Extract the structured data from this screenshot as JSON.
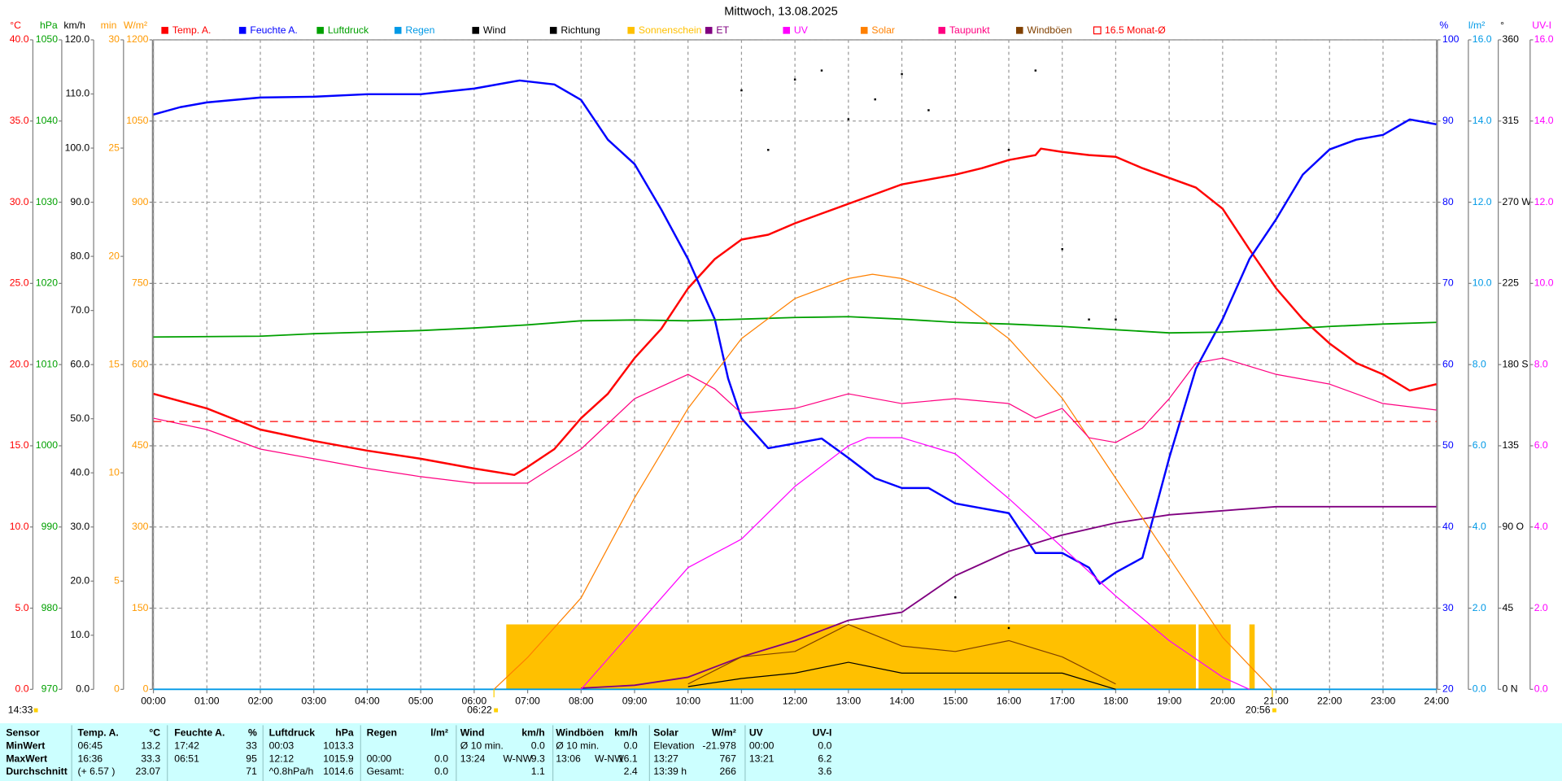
{
  "chart_data": {
    "type": "line",
    "title": "Mittwoch, 13.08.2025",
    "xlim": [
      0,
      24
    ],
    "xticks": [
      {
        "value": 0,
        "label": "00:00"
      },
      {
        "value": 1,
        "label": "01:00"
      },
      {
        "value": 2,
        "label": "02:00"
      },
      {
        "value": 3,
        "label": "03:00"
      },
      {
        "value": 4,
        "label": "04:00"
      },
      {
        "value": 5,
        "label": "05:00"
      },
      {
        "value": 6,
        "label": "06:00"
      },
      {
        "value": 7,
        "label": "07:00"
      },
      {
        "value": 8,
        "label": "08:00"
      },
      {
        "value": 9,
        "label": "09:00"
      },
      {
        "value": 10,
        "label": "10:00"
      },
      {
        "value": 11,
        "label": "11:00"
      },
      {
        "value": 12,
        "label": "12:00"
      },
      {
        "value": 13,
        "label": "13:00"
      },
      {
        "value": 14,
        "label": "14:00"
      },
      {
        "value": 15,
        "label": "15:00"
      },
      {
        "value": 16,
        "label": "16:00"
      },
      {
        "value": 17,
        "label": "17:00"
      },
      {
        "value": 18,
        "label": "18:00"
      },
      {
        "value": 19,
        "label": "19:00"
      },
      {
        "value": 20,
        "label": "20:00"
      },
      {
        "value": 21,
        "label": "21:00"
      },
      {
        "value": 22,
        "label": "22:00"
      },
      {
        "value": 23,
        "label": "23:00"
      },
      {
        "value": 24,
        "label": "24:00"
      }
    ],
    "axes": [
      {
        "id": "temp",
        "side": "left",
        "label": "°C",
        "color": "#ff0000",
        "ylim": [
          0,
          40
        ],
        "yticks": [
          {
            "value": 0,
            "label": "0.0"
          },
          {
            "value": 5,
            "label": "5.0"
          },
          {
            "value": 10,
            "label": "10.0"
          },
          {
            "value": 15,
            "label": "15.0"
          },
          {
            "value": 20,
            "label": "20.0"
          },
          {
            "value": 25,
            "label": "25.0"
          },
          {
            "value": 30,
            "label": "30.0"
          },
          {
            "value": 35,
            "label": "35.0"
          },
          {
            "value": 40,
            "label": "40.0"
          }
        ]
      },
      {
        "id": "hpa",
        "side": "left",
        "label": "hPa",
        "color": "#00a000",
        "ylim": [
          970,
          1050
        ],
        "yticks": [
          970,
          980,
          990,
          1000,
          1010,
          1020,
          1030,
          1040,
          1050
        ]
      },
      {
        "id": "kmh",
        "side": "left",
        "label": "km/h",
        "color": "#000000",
        "ylim": [
          0,
          120
        ],
        "yticks": [
          {
            "value": 0,
            "label": "0.0"
          },
          {
            "value": 10,
            "label": "10.0"
          },
          {
            "value": 20,
            "label": "20.0"
          },
          {
            "value": 30,
            "label": "30.0"
          },
          {
            "value": 40,
            "label": "40.0"
          },
          {
            "value": 50,
            "label": "50.0"
          },
          {
            "value": 60,
            "label": "60.0"
          },
          {
            "value": 70,
            "label": "70.0"
          },
          {
            "value": 80,
            "label": "80.0"
          },
          {
            "value": 90,
            "label": "90.0"
          },
          {
            "value": 100,
            "label": "100.0"
          },
          {
            "value": 110,
            "label": "110.0"
          },
          {
            "value": 120,
            "label": "120.0"
          }
        ]
      },
      {
        "id": "min",
        "side": "left",
        "label": "min",
        "color": "#ff9900",
        "ylim": [
          0,
          30
        ],
        "yticks": [
          0,
          5,
          10,
          15,
          20,
          25,
          30
        ]
      },
      {
        "id": "wm2",
        "side": "left",
        "label": "W/m²",
        "color": "#ff9900",
        "ylim": [
          0,
          1200
        ],
        "yticks": [
          0,
          150,
          300,
          450,
          600,
          750,
          900,
          1050,
          1200
        ]
      },
      {
        "id": "pct",
        "side": "right",
        "label": "%",
        "color": "#0000ff",
        "grid": true,
        "ylim": [
          20,
          100
        ],
        "yticks": [
          20,
          30,
          40,
          50,
          60,
          70,
          80,
          90,
          100
        ]
      },
      {
        "id": "lm2",
        "side": "right",
        "label": "l/m²",
        "color": "#0099e6",
        "ylim": [
          0,
          16
        ],
        "yticks": [
          {
            "value": 0,
            "label": "0.0"
          },
          {
            "value": 2,
            "label": "2.0"
          },
          {
            "value": 4,
            "label": "4.0"
          },
          {
            "value": 6,
            "label": "6.0"
          },
          {
            "value": 8,
            "label": "8.0"
          },
          {
            "value": 10,
            "label": "10.0"
          },
          {
            "value": 12,
            "label": "12.0"
          },
          {
            "value": 14,
            "label": "14.0"
          },
          {
            "value": 16,
            "label": "16.0"
          }
        ]
      },
      {
        "id": "deg",
        "side": "right",
        "label": "°",
        "color": "#000000",
        "ylim": [
          0,
          360
        ],
        "yticks": [
          {
            "value": 0,
            "label": "0 N"
          },
          45,
          {
            "value": 90,
            "label": "90 O"
          },
          135,
          {
            "value": 180,
            "label": "180 S"
          },
          225,
          {
            "value": 270,
            "label": "270 W"
          },
          315,
          360
        ]
      },
      {
        "id": "uvi",
        "side": "right",
        "label": "UV-I",
        "color": "#ff00ff",
        "ylim": [
          0,
          16
        ],
        "yticks": [
          {
            "value": 0,
            "label": "0.0"
          },
          {
            "value": 2,
            "label": "2.0"
          },
          {
            "value": 4,
            "label": "4.0"
          },
          {
            "value": 6,
            "label": "6.0"
          },
          {
            "value": 8,
            "label": "8.0"
          },
          {
            "value": 10,
            "label": "10.0"
          },
          {
            "value": 12,
            "label": "12.0"
          },
          {
            "value": 14,
            "label": "14.0"
          },
          {
            "value": 16,
            "label": "16.0"
          }
        ]
      }
    ],
    "series": [
      {
        "name": "Temp. A.",
        "color": "#ff0000",
        "axis": "temp",
        "style": "line",
        "width": 2,
        "x": [
          0,
          1,
          2,
          3,
          4,
          5,
          6,
          6.75,
          7,
          7.5,
          8,
          8.5,
          9,
          9.5,
          10,
          10.5,
          11,
          11.5,
          12,
          12.5,
          13,
          13.5,
          14,
          14.5,
          15,
          15.5,
          16,
          16.5,
          16.6,
          17,
          17.5,
          18,
          18.5,
          19,
          19.5,
          20,
          20.5,
          21,
          21.5,
          22,
          22.5,
          23,
          23.5,
          24
        ],
        "values": [
          18.2,
          17.3,
          16.0,
          15.3,
          14.7,
          14.2,
          13.6,
          13.2,
          13.7,
          14.8,
          16.7,
          18.2,
          20.4,
          22.2,
          24.7,
          26.5,
          27.7,
          28.0,
          28.7,
          29.3,
          29.9,
          30.5,
          31.1,
          31.4,
          31.7,
          32.1,
          32.6,
          32.9,
          33.3,
          33.1,
          32.9,
          32.8,
          32.1,
          31.5,
          30.9,
          29.6,
          27.1,
          24.7,
          22.8,
          21.3,
          20.1,
          19.4,
          18.4,
          18.8
        ]
      },
      {
        "name": "Feuchte A.",
        "color": "#0000ff",
        "axis": "pct",
        "style": "line",
        "width": 2,
        "x": [
          0,
          0.5,
          1,
          2,
          3,
          4,
          5,
          6,
          6.85,
          7.5,
          8,
          8.5,
          9,
          9.5,
          10,
          10.5,
          10.75,
          11,
          11.5,
          12,
          12.5,
          13,
          13.5,
          14,
          14.5,
          15,
          15.5,
          16,
          16.5,
          17,
          17.5,
          17.7,
          18,
          18.5,
          19,
          19.5,
          20,
          20.5,
          21,
          21.5,
          22,
          22.5,
          23,
          23.5,
          24
        ],
        "values": [
          90.8,
          91.7,
          92.3,
          92.9,
          93,
          93.3,
          93.3,
          94,
          95,
          94.5,
          92.6,
          87.7,
          84.7,
          79.1,
          73,
          65.6,
          58.3,
          53.4,
          49.7,
          50.3,
          50.9,
          48.5,
          46,
          44.8,
          44.8,
          42.9,
          42.3,
          41.7,
          36.8,
          36.8,
          35,
          33,
          34.4,
          36.2,
          48.5,
          59.5,
          65.6,
          73,
          77.9,
          83.4,
          86.5,
          87.7,
          88.3,
          90.2,
          89.6
        ]
      },
      {
        "name": "Luftdruck",
        "color": "#00a000",
        "axis": "hpa",
        "style": "line",
        "width": 1.5,
        "x": [
          0,
          2,
          3,
          4,
          5,
          6,
          7,
          8,
          9,
          10,
          11,
          12,
          13,
          14,
          15,
          16,
          17,
          18,
          19,
          20,
          21,
          22,
          23,
          24
        ],
        "values": [
          1013.4,
          1013.5,
          1013.8,
          1014.0,
          1014.2,
          1014.5,
          1014.9,
          1015.4,
          1015.5,
          1015.4,
          1015.6,
          1015.8,
          1015.9,
          1015.6,
          1015.2,
          1015.0,
          1014.7,
          1014.3,
          1013.9,
          1014.0,
          1014.3,
          1014.7,
          1015.0,
          1015.2
        ]
      },
      {
        "name": "Regen",
        "color": "#0099e6",
        "axis": "lm2",
        "style": "line",
        "width": 1.5,
        "x": [
          0,
          24
        ],
        "values": [
          0,
          0
        ]
      },
      {
        "name": "Wind",
        "color": "#000000",
        "axis": "kmh",
        "style": "line",
        "width": 1,
        "x": [
          10,
          11,
          12,
          13,
          14,
          15,
          16,
          17,
          18
        ],
        "values": [
          0.5,
          2,
          3,
          5,
          3,
          3,
          3,
          3,
          0
        ]
      },
      {
        "name": "Richtung",
        "color": "#000000",
        "axis": "deg",
        "style": "scatter",
        "x": [
          11,
          11.5,
          12,
          12.5,
          13,
          13.5,
          14,
          14.5,
          16,
          16.5,
          17,
          17.5,
          18,
          15,
          16
        ],
        "values": [
          332,
          299,
          338,
          343,
          316,
          327,
          341,
          321,
          299,
          343,
          244,
          205,
          205,
          51,
          34
        ]
      },
      {
        "name": "Sonnenschein",
        "color": "#ffc000",
        "axis": "min",
        "style": "bars",
        "x": [
          6.6,
          19.55,
          20.5
        ],
        "x_end": [
          19.5,
          20.15,
          20.6
        ],
        "values": [
          3,
          3,
          3
        ]
      },
      {
        "name": "ET",
        "color": "#800080",
        "axis": "lm2",
        "style": "line",
        "width": 1.5,
        "x": [
          8,
          9,
          10,
          11,
          12,
          13,
          14,
          15,
          16,
          17,
          18,
          19,
          20,
          21,
          24
        ],
        "values": [
          0.03,
          0.1,
          0.3,
          0.8,
          1.2,
          1.7,
          1.9,
          2.8,
          3.4,
          3.8,
          4.1,
          4.3,
          4.4,
          4.5,
          4.5
        ]
      },
      {
        "name": "UV",
        "color": "#ff00ff",
        "axis": "uvi",
        "style": "line",
        "width": 1,
        "x": [
          8,
          9,
          10,
          11,
          12,
          13,
          13.35,
          14,
          15,
          16,
          17,
          18,
          19,
          20,
          20.5
        ],
        "values": [
          0,
          1.5,
          3.0,
          3.7,
          5.0,
          6.0,
          6.2,
          6.2,
          5.8,
          4.7,
          3.5,
          2.3,
          1.2,
          0.3,
          0
        ]
      },
      {
        "name": "Solar",
        "color": "#ff8000",
        "axis": "wm2",
        "style": "line",
        "width": 1,
        "x": [
          6.37,
          7,
          8,
          9,
          10,
          11,
          12,
          13,
          13.45,
          14,
          15,
          16,
          17,
          18,
          19,
          20,
          20.93
        ],
        "values": [
          0,
          59,
          169,
          354,
          519,
          648,
          722,
          759,
          767,
          759,
          722,
          648,
          538,
          390,
          243,
          96,
          0
        ]
      },
      {
        "name": "Taupunkt",
        "color": "#ff0080",
        "axis": "temp",
        "style": "line",
        "width": 1,
        "x": [
          0,
          1,
          2,
          3,
          4,
          5,
          6,
          7,
          8,
          9,
          10,
          10.5,
          11,
          12,
          13,
          14,
          15,
          16,
          16.5,
          17,
          17.5,
          18,
          18.5,
          19,
          19.5,
          20,
          21,
          22,
          23,
          24
        ],
        "values": [
          16.7,
          16.0,
          14.8,
          14.2,
          13.6,
          13.1,
          12.7,
          12.7,
          14.8,
          17.9,
          19.4,
          18.5,
          17.0,
          17.3,
          18.2,
          17.6,
          17.9,
          17.6,
          16.7,
          17.3,
          15.5,
          15.2,
          16.1,
          17.9,
          20.1,
          20.4,
          19.4,
          18.8,
          17.6,
          17.2
        ]
      },
      {
        "name": "Windböen",
        "color": "#804000",
        "axis": "kmh",
        "style": "line",
        "width": 1,
        "x": [
          10,
          11,
          12,
          13,
          14,
          15,
          16,
          17,
          18
        ],
        "values": [
          1,
          6,
          7,
          12,
          8,
          7,
          9,
          6,
          1
        ]
      },
      {
        "name": "16.5 Monat-Ø",
        "color": "#ff0000",
        "axis": "temp",
        "style": "line",
        "dashed": true,
        "width": 1,
        "x": [
          0,
          24
        ],
        "values": [
          16.5,
          16.5
        ]
      }
    ],
    "annotations": [
      {
        "text": "14:33"
      },
      {
        "text": "06:22",
        "x": 6.37
      },
      {
        "text": "20:56",
        "x": 20.93
      }
    ]
  },
  "summary": {
    "rows": [
      [
        "Sensor",
        "Temp. A.",
        "°C",
        "Feuchte A.",
        "%",
        "Luftdruck",
        "hPa",
        "Regen",
        "l/m²",
        "Wind",
        null,
        "km/h",
        "Windböen",
        null,
        "km/h",
        "Solar",
        "W/m²",
        "UV",
        "UV-I"
      ],
      [
        "MinWert",
        "06:45",
        "13.2",
        "17:42",
        "33",
        "00:03",
        "1013.3",
        null,
        null,
        "Ø 10 min.",
        null,
        "0.0",
        "Ø 10 min.",
        null,
        "0.0",
        "Elevation",
        "-21.978",
        "00:00",
        "0.0"
      ],
      [
        "MaxWert",
        "16:36",
        "33.3",
        "06:51",
        "95",
        "12:12",
        "1015.9",
        "00:00",
        "0.0",
        "13:24",
        "W-NW",
        "9.3",
        "13:06",
        "W-NW",
        "16.1",
        "13:27",
        "767",
        "13:21",
        "6.2"
      ],
      [
        "Durchschnitt",
        "(+ 6.57 )",
        "23.07",
        null,
        "71",
        "^0.8hPa/h",
        "1014.6",
        "Gesamt:",
        "0.0",
        null,
        null,
        "1.1",
        null,
        null,
        "2.4",
        "13:39 h",
        "266",
        null,
        "3.6"
      ]
    ]
  }
}
